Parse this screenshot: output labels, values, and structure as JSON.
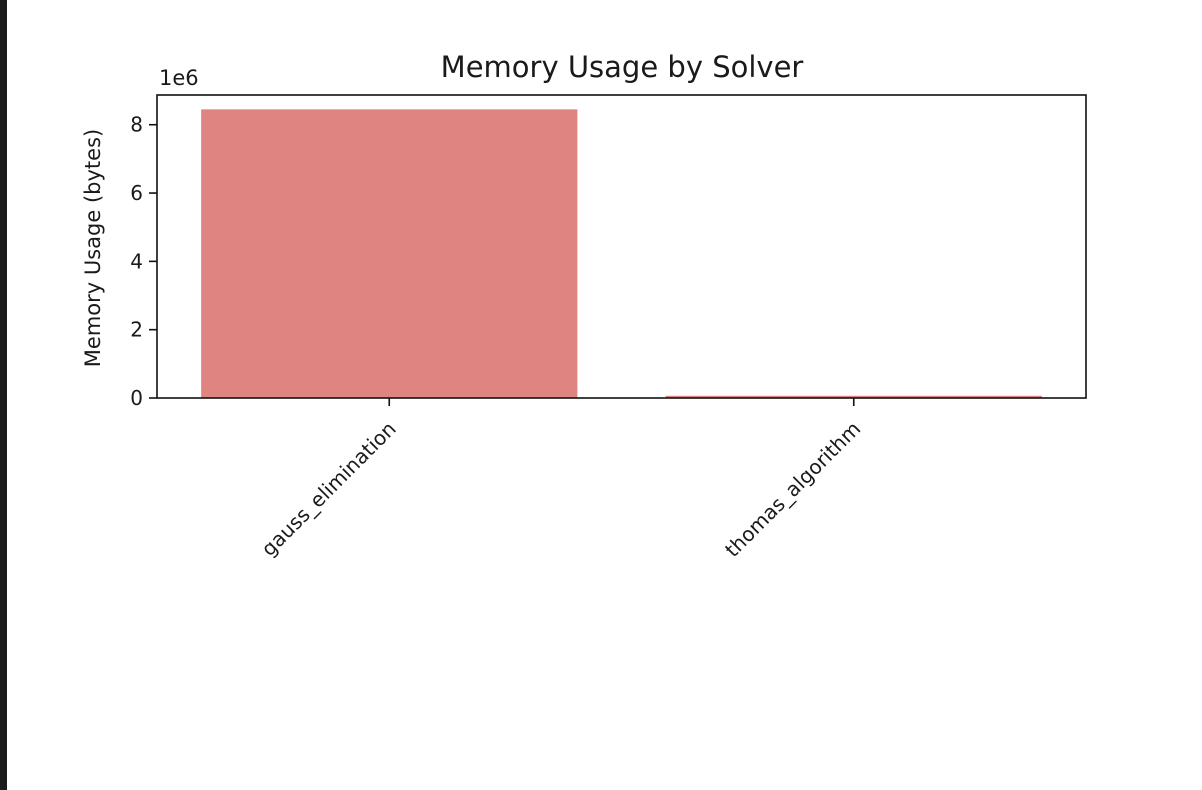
{
  "chart_data": {
    "type": "bar",
    "title": "Memory Usage by Solver",
    "xlabel": "",
    "ylabel": "Memory Usage (bytes)",
    "offset_label": "1e6",
    "categories": [
      "gauss_elimination",
      "thomas_algorithm"
    ],
    "values": [
      8450000,
      65000
    ],
    "ylim": [
      0,
      8870000
    ],
    "yticks": [
      0,
      2000000,
      4000000,
      6000000,
      8000000
    ],
    "ytick_labels": [
      "0",
      "2",
      "4",
      "6",
      "8"
    ],
    "bar_color": "#e08482",
    "grid": false,
    "legend": "none"
  }
}
